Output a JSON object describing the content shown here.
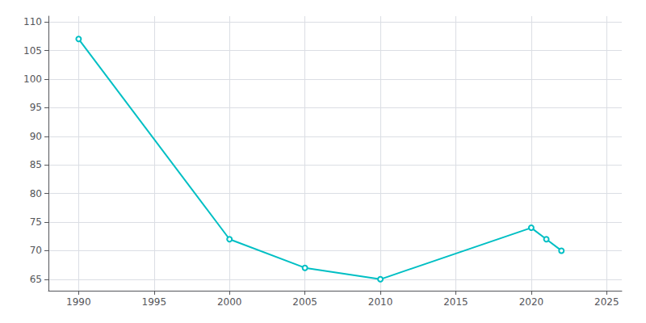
{
  "chart_data": {
    "type": "line",
    "x": [
      1990,
      2000,
      2005,
      2010,
      2020,
      2021,
      2022
    ],
    "values": [
      107,
      72,
      67,
      65,
      74,
      72,
      70
    ],
    "color": "#00BFC4",
    "xlim": [
      1988,
      2026
    ],
    "ylim": [
      63,
      111
    ],
    "xticks": [
      1990,
      1995,
      2000,
      2005,
      2010,
      2015,
      2020,
      2025
    ],
    "yticks": [
      65,
      70,
      75,
      80,
      85,
      90,
      95,
      100,
      105,
      110
    ],
    "grid": true
  }
}
